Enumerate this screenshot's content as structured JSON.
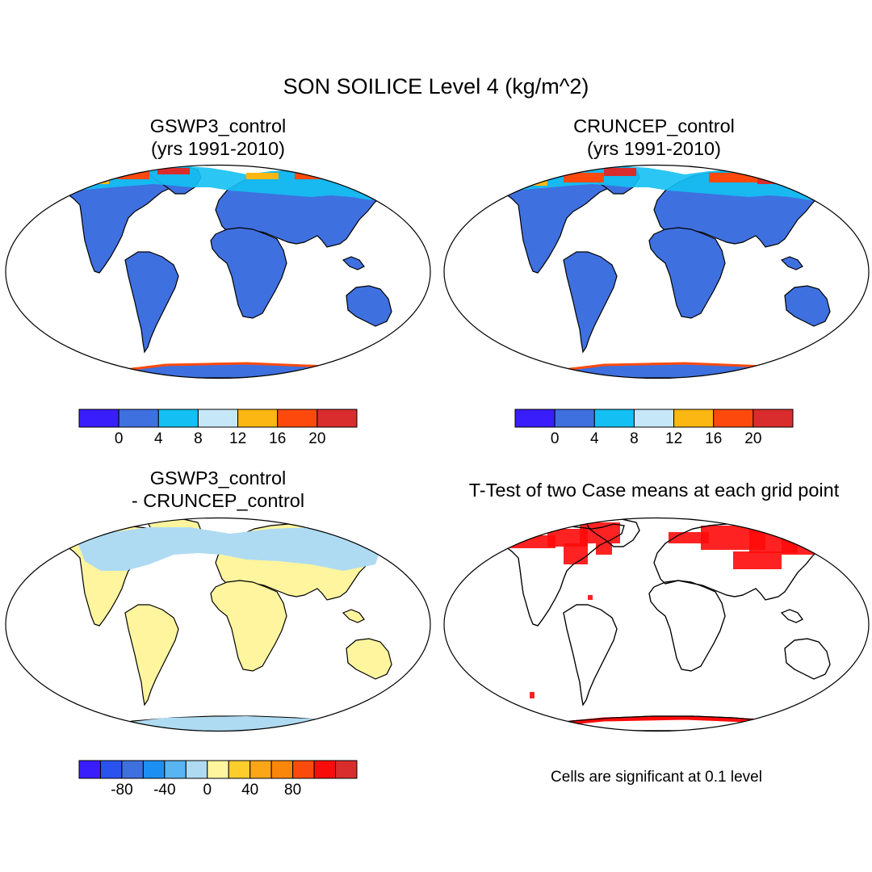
{
  "title": "SON SOILICE Level 4 (kg/m^2)",
  "panels": [
    {
      "title1": "GSWP3_control",
      "title2": "(yrs 1991-2010)",
      "fill": "#3f70df",
      "north_overlay": "gswp3"
    },
    {
      "title1": "CRUNCEP_control",
      "title2": "(yrs 1991-2010)",
      "fill": "#3f70df",
      "north_overlay": "cruncep"
    },
    {
      "title1": "GSWP3_control",
      "title2": "- CRUNCEP_control",
      "fill": "#fff59e",
      "north_overlay": "diff"
    },
    {
      "title1": "T-Test of two Case means at each grid point",
      "title2": "",
      "fill": "none",
      "north_overlay": "ttest"
    }
  ],
  "colorbars": {
    "abs": {
      "colors": [
        "#3a1dfb",
        "#3f70df",
        "#14c0f3",
        "#c6e7f7",
        "#fdb712",
        "#fd4a0c",
        "#d92d2d"
      ],
      "labels": [
        "0",
        "4",
        "8",
        "12",
        "16",
        "20"
      ]
    },
    "diff": {
      "colors": [
        "#3a1dfb",
        "#2a52ef",
        "#3f70df",
        "#1c8ff2",
        "#59b4f2",
        "#aedbf2",
        "#fff59e",
        "#fdcd2c",
        "#fba617",
        "#fa860c",
        "#fb4b0c",
        "#f80d0d",
        "#d92d2d"
      ],
      "labels": [
        "-80",
        "-40",
        "0",
        "40",
        "80"
      ]
    }
  },
  "note": "Cells are significant at 0.1 level"
}
